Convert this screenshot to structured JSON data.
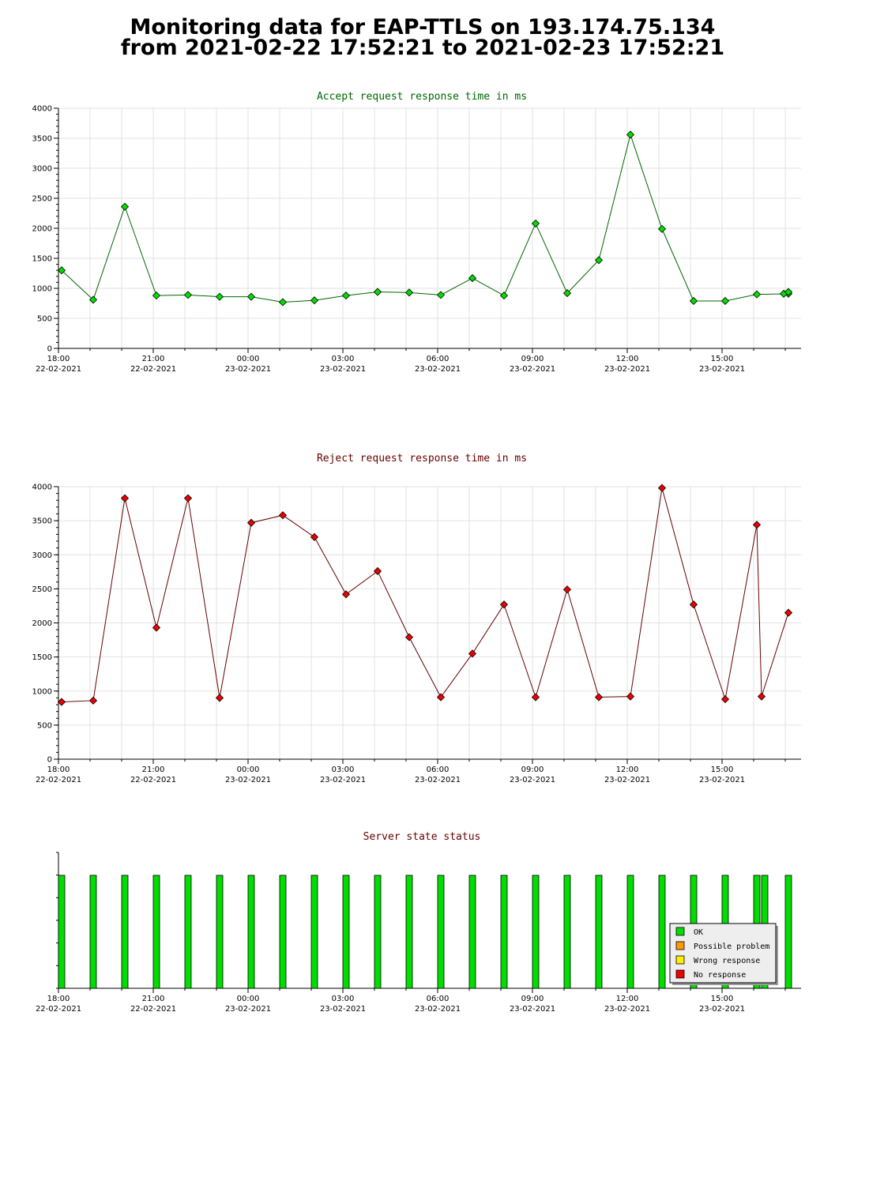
{
  "page": {
    "title_line1": "Monitoring data for EAP-TTLS on 193.174.75.134",
    "title_line2": "from 2021-02-22 17:52:21 to 2021-02-23 17:52:21"
  },
  "colors": {
    "accept": "#00dd00",
    "reject": "#ee0000",
    "accept_line": "#006600",
    "reject_line": "#660000",
    "ok": "#00dd00",
    "possible_problem": "#ff9900",
    "wrong_response": "#ffee00",
    "no_response": "#ee0000"
  },
  "x_ticks": [
    {
      "time": "18:00",
      "date": "22-02-2021"
    },
    {
      "time": "21:00",
      "date": "22-02-2021"
    },
    {
      "time": "00:00",
      "date": "23-02-2021"
    },
    {
      "time": "03:00",
      "date": "23-02-2021"
    },
    {
      "time": "06:00",
      "date": "23-02-2021"
    },
    {
      "time": "09:00",
      "date": "23-02-2021"
    },
    {
      "time": "12:00",
      "date": "23-02-2021"
    },
    {
      "time": "15:00",
      "date": "23-02-2021"
    }
  ],
  "chart_data": [
    {
      "type": "line",
      "title": "Accept request response time in ms",
      "x_unit": "hours after 2021-02-22 18:00",
      "x": [
        0.1,
        1.1,
        2.1,
        3.1,
        4.1,
        5.1,
        6.1,
        7.1,
        8.1,
        9.1,
        10.1,
        11.1,
        12.1,
        13.1,
        14.1,
        15.1,
        16.1,
        17.1,
        18.1,
        19.1,
        20.1,
        21.1,
        22.1,
        23.1,
        22.95,
        23.1
      ],
      "y": [
        1300,
        810,
        2360,
        880,
        890,
        860,
        860,
        770,
        800,
        880,
        940,
        930,
        890,
        1170,
        880,
        2080,
        920,
        1470,
        3560,
        1990,
        790,
        790,
        900,
        910,
        910,
        940
      ],
      "ylim": [
        0,
        4000
      ],
      "yticks": [
        0,
        500,
        1000,
        1500,
        2000,
        2500,
        3000,
        3500,
        4000
      ],
      "grid": true
    },
    {
      "type": "line",
      "title": "Reject request response time in ms",
      "x_unit": "hours after 2021-02-22 18:00",
      "x": [
        0.1,
        1.1,
        2.1,
        3.1,
        4.1,
        5.1,
        6.1,
        7.1,
        8.1,
        9.1,
        10.1,
        11.1,
        12.1,
        13.1,
        14.1,
        15.1,
        16.1,
        17.1,
        18.1,
        19.1,
        20.1,
        21.1,
        22.1,
        22.25,
        23.1
      ],
      "y": [
        840,
        860,
        3830,
        1930,
        3830,
        900,
        3470,
        3580,
        3260,
        2420,
        2760,
        1790,
        910,
        1550,
        2270,
        910,
        2490,
        910,
        920,
        3980,
        2270,
        880,
        3440,
        920,
        2150
      ],
      "ylim": [
        0,
        4000
      ],
      "yticks": [
        0,
        500,
        1000,
        1500,
        2000,
        2500,
        3000,
        3500,
        4000
      ],
      "grid": true
    },
    {
      "type": "bar",
      "title": "Server state status",
      "x_unit": "hours after 2021-02-22 18:00",
      "x": [
        0.1,
        1.1,
        2.1,
        3.1,
        4.1,
        5.1,
        6.1,
        7.1,
        8.1,
        9.1,
        10.1,
        11.1,
        12.1,
        13.1,
        14.1,
        15.1,
        16.1,
        17.1,
        18.1,
        19.1,
        20.1,
        21.1,
        22.1,
        22.35,
        23.1
      ],
      "status": [
        "OK",
        "OK",
        "OK",
        "OK",
        "OK",
        "OK",
        "OK",
        "OK",
        "OK",
        "OK",
        "OK",
        "OK",
        "OK",
        "OK",
        "OK",
        "OK",
        "OK",
        "OK",
        "OK",
        "OK",
        "OK",
        "OK",
        "OK",
        "OK",
        "OK"
      ],
      "legend": [
        "OK",
        "Possible problem",
        "Wrong response",
        "No response"
      ],
      "legend_position": "bottom-right"
    }
  ]
}
